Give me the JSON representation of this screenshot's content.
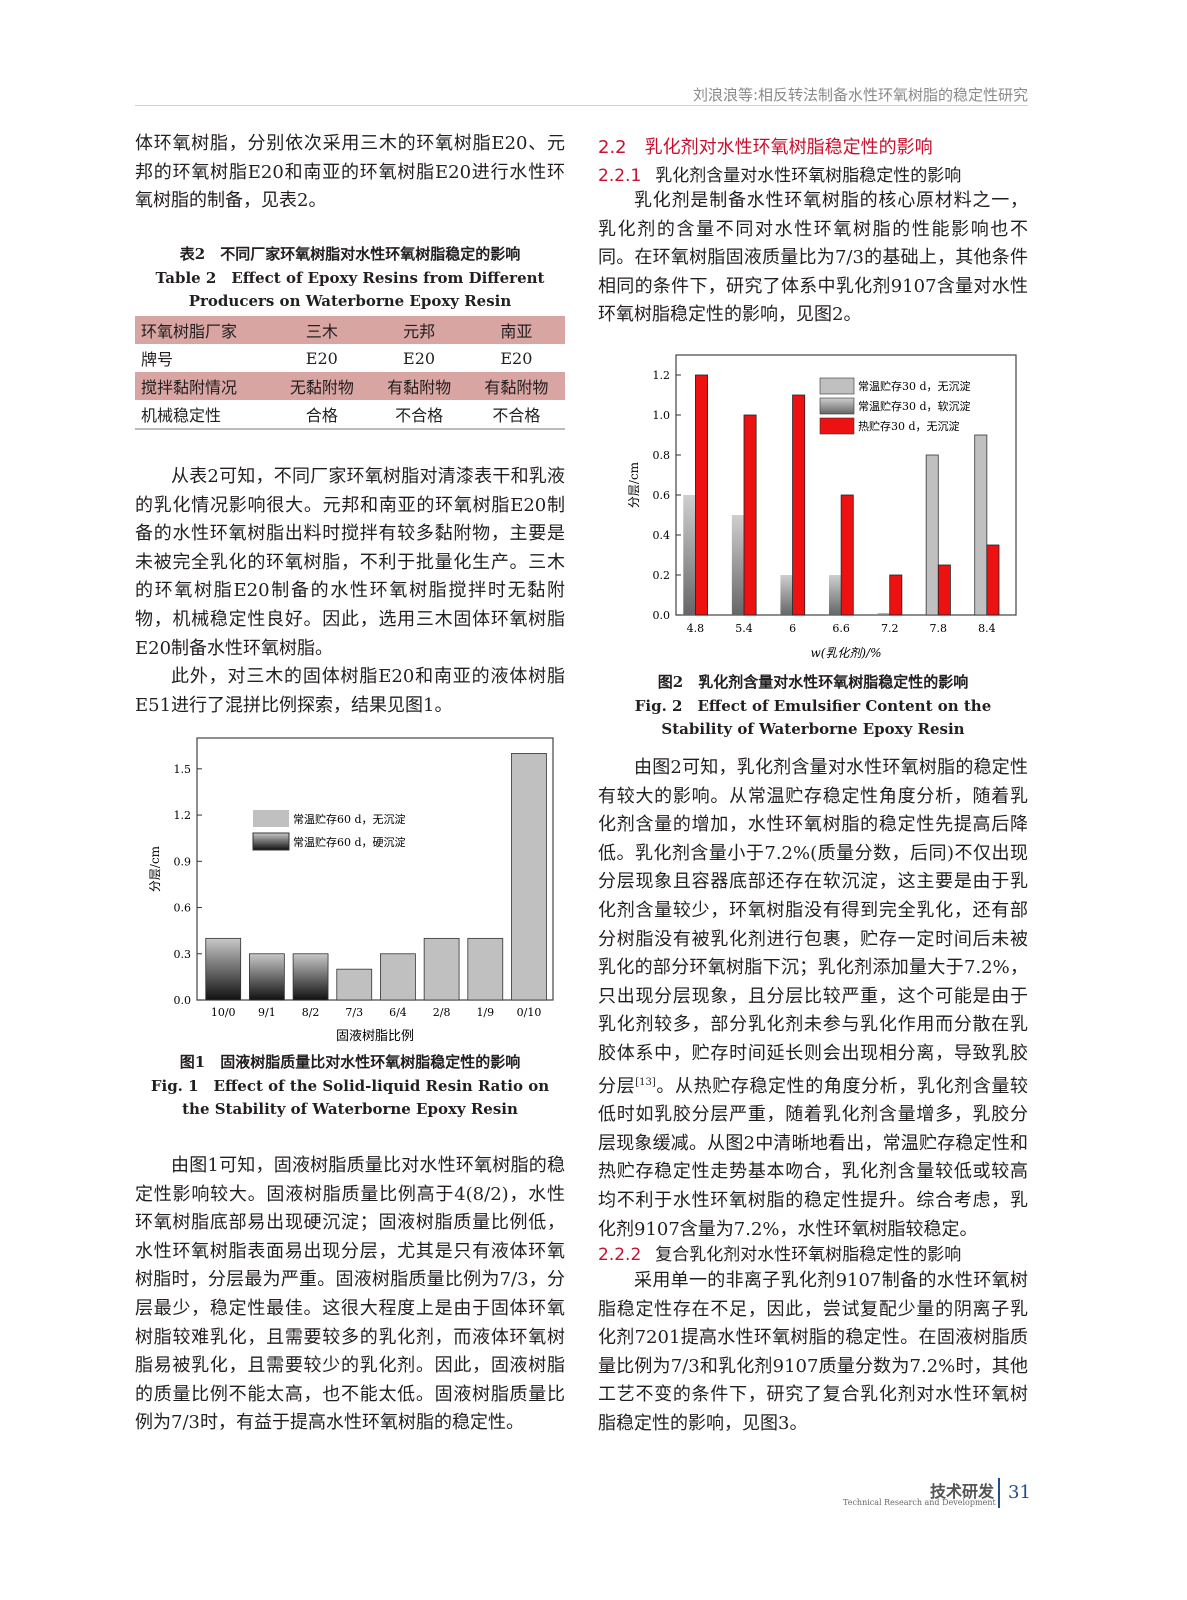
{
  "header": {
    "running_title": "刘浪浪等:相反转法制备水性环氧树脂的稳定性研究"
  },
  "left": {
    "p_intro": "体环氧树脂，分别依次采用三木的环氧树脂E20、元邦的环氧树脂E20和南亚的环氧树脂E20进行水性环氧树脂的制备，见表2。",
    "table2": {
      "caption_cn": "表2　不同厂家环氧树脂对水性环氧树脂稳定的影响",
      "caption_en": "Table 2　Effect of Epoxy Resins from Different Producers on Waterborne Epoxy Resin",
      "rows": [
        [
          "环氧树脂厂家",
          "三木",
          "元邦",
          "南亚"
        ],
        [
          "牌号",
          "E20",
          "E20",
          "E20"
        ],
        [
          "搅拌黏附情况",
          "无黏附物",
          "有黏附物",
          "有黏附物"
        ],
        [
          "机械稳定性",
          "合格",
          "不合格",
          "不合格"
        ]
      ]
    },
    "p2": "从表2可知，不同厂家环氧树脂对清漆表干和乳液的乳化情况影响很大。元邦和南亚的环氧树脂E20制备的水性环氧树脂出料时搅拌有较多黏附物，主要是未被完全乳化的环氧树脂，不利于批量化生产。三木的环氧树脂E20制备的水性环氧树脂搅拌时无黏附物，机械稳定性良好。因此，选用三木固体环氧树脂E20制备水性环氧树脂。",
    "p3": "此外，对三木的固体树脂E20和南亚的液体树脂E51进行了混拼比例探索，结果见图1。",
    "fig1_caption_cn": "图1　固液树脂质量比对水性环氧树脂稳定性的影响",
    "fig1_caption_en": "Fig. 1　Effect of the Solid-liquid Resin Ratio on the Stability of Waterborne Epoxy Resin",
    "p4": "由图1可知，固液树脂质量比对水性环氧树脂的稳定性影响较大。固液树脂质量比例高于4(8/2)，水性环氧树脂底部易出现硬沉淀；固液树脂质量比例低，水性环氧树脂表面易出现分层，尤其是只有液体环氧树脂时，分层最为严重。固液树脂质量比例为7/3，分层最少，稳定性最佳。这很大程度上是由于固体环氧树脂较难乳化，且需要较多的乳化剂，而液体环氧树脂易被乳化，且需要较少的乳化剂。因此，固液树脂的质量比例不能太高，也不能太低。固液树脂质量比例为7/3时，有益于提高水性环氧树脂的稳定性。"
  },
  "right": {
    "h2": "2.2　乳化剂对水性环氧树脂稳定性的影响",
    "h221_num": "2.2.1",
    "h221": "乳化剂含量对水性环氧树脂稳定性的影响",
    "p1": "乳化剂是制备水性环氧树脂的核心原材料之一，乳化剂的含量不同对水性环氧树脂的性能影响也不同。在环氧树脂固液质量比为7/3的基础上，其他条件相同的条件下，研究了体系中乳化剂9107含量对水性环氧树脂稳定性的影响，见图2。",
    "fig2_caption_cn": "图2　乳化剂含量对水性环氧树脂稳定性的影响",
    "fig2_caption_en": "Fig. 2　Effect of Emulsifier Content on the Stability of Waterborne Epoxy Resin",
    "p2a": "由图2可知，乳化剂含量对水性环氧树脂的稳定性有较大的影响。从常温贮存稳定性角度分析，随着乳化剂含量的增加，水性环氧树脂的稳定性先提高后降低。乳化剂含量小于7.2%(质量分数，后同)不仅出现分层现象且容器底部还存在软沉淀，这主要是由于乳化剂含量较少，环氧树脂没有得到完全乳化，还有部分树脂没有被乳化剂进行包裹，贮存一定时间后未被乳化的部分环氧树脂下沉；乳化剂添加量大于7.2%，只出现分层现象，且分层比较严重，这个可能是由于乳化剂较多，部分乳化剂未参与乳化作用而分散在乳胶体系中，贮存时间延长则会出现相分离，导致乳胶分层",
    "ref": "[13]",
    "p2b": "。从热贮存稳定性的角度分析，乳化剂含量较低时如乳胶分层严重，随着乳化剂含量增多，乳胶分层现象缓减。从图2中清晰地看出，常温贮存稳定性和热贮存稳定性走势基本吻合，乳化剂含量较低或较高均不利于水性环氧树脂的稳定性提升。综合考虑，乳化剂9107含量为7.2%，水性环氧树脂较稳定。",
    "h222_num": "2.2.2",
    "h222": "复合乳化剂对水性环氧树脂稳定性的影响",
    "p3": "采用单一的非离子乳化剂9107制备的水性环氧树脂稳定性存在不足，因此，尝试复配少量的阴离子乳化剂7201提高水性环氧树脂的稳定性。在固液树脂质量比例为7/3和乳化剂9107质量分数为7.2%时，其他工艺不变的条件下，研究了复合乳化剂对水性环氧树脂稳定性的影响，见图3。"
  },
  "footer": {
    "section_cn": "技术研发",
    "section_en": "Technical Research and Development",
    "page": "31"
  },
  "chart_data": [
    {
      "type": "bar",
      "ylabel": "分层/cm",
      "xlabel": "固液树脂比例",
      "ylim": [
        0,
        1.7
      ],
      "yticks": [
        "0.0",
        "0.3",
        "0.6",
        "0.9",
        "1.2",
        "1.5"
      ],
      "categories": [
        "10/0",
        "9/1",
        "8/2",
        "7/3",
        "6/4",
        "2/8",
        "1/9",
        "0/10"
      ],
      "values": [
        0.4,
        0.3,
        0.3,
        0.2,
        0.3,
        0.4,
        0.4,
        1.6
      ],
      "bar_type": [
        "hard",
        "hard",
        "hard",
        "none",
        "none",
        "none",
        "none",
        "none"
      ],
      "legend": [
        {
          "key": "none",
          "name": "常温贮存60 d，无沉淀"
        },
        {
          "key": "hard",
          "name": "常温贮存60 d，硬沉淀"
        }
      ],
      "legend_position": "upper-left-center"
    },
    {
      "type": "bar",
      "ylabel": "分层/cm",
      "xlabel": "w(乳化剂)/%",
      "ylim": [
        0,
        1.3
      ],
      "yticks": [
        "0.0",
        "0.2",
        "0.4",
        "0.6",
        "0.8",
        "1.0",
        "1.2"
      ],
      "categories": [
        "4.8",
        "5.4",
        "6",
        "6.6",
        "7.2",
        "7.8",
        "8.4"
      ],
      "series": [
        {
          "name": "常温贮存30 d",
          "values": [
            0.6,
            0.5,
            0.2,
            0.2,
            0.01,
            0.8,
            0.9
          ],
          "bar_type": [
            "soft",
            "soft",
            "soft",
            "soft",
            "soft",
            "none",
            "none"
          ]
        },
        {
          "name": "热贮存30 d，无沉淀",
          "values": [
            1.2,
            1.0,
            1.1,
            0.6,
            0.2,
            0.25,
            0.35
          ]
        }
      ],
      "legend": [
        {
          "key": "none",
          "name": "常温贮存30 d，无沉淀"
        },
        {
          "key": "soft",
          "name": "常温贮存30 d，软沉淀"
        },
        {
          "key": "hot",
          "name": "热贮存30 d，无沉淀"
        }
      ],
      "legend_position": "top-right",
      "colors": {
        "hot": "#ee1111",
        "none": "#c0c0c0"
      }
    }
  ]
}
